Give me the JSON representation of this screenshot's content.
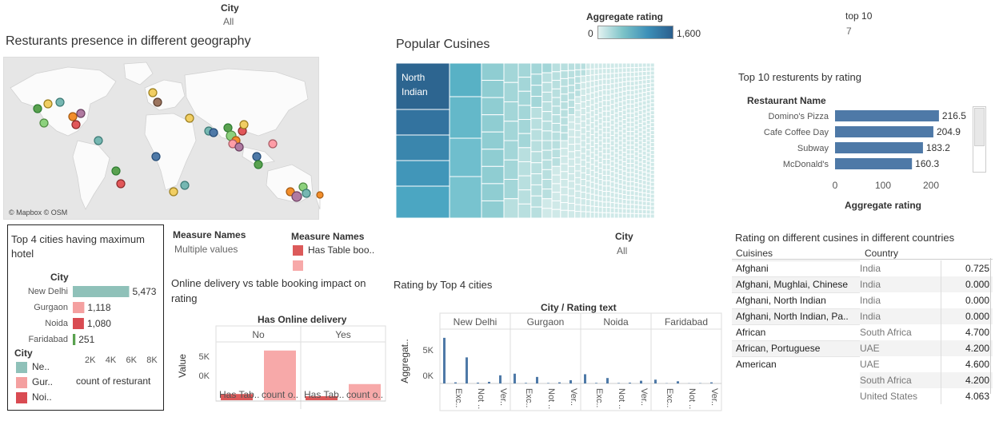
{
  "filters": {
    "city_top": {
      "label": "City",
      "value": "All"
    },
    "aggregate_rating": {
      "label": "Aggregate rating",
      "min": "0",
      "max": "1,600"
    },
    "top10": {
      "label": "top 10",
      "value": "7"
    },
    "city_mid": {
      "label": "City",
      "value": "All"
    }
  },
  "map": {
    "title": "Resturants presence in different geography",
    "credit": "© Mapbox © OSM"
  },
  "treemap": {
    "title": "Popular Cusines",
    "largest_label_line1": "North",
    "largest_label_line2": "Indian"
  },
  "top10_chart": {
    "title": "Top 10 resturents by rating",
    "column_header": "Restaurant Name",
    "xlabel": "Aggregate rating",
    "ticks": [
      "0",
      "100",
      "200"
    ]
  },
  "cities_panel": {
    "title_line1": "Top 4 cities having maximum",
    "title_line2": "hotel",
    "column_header": "City",
    "xlabel": "count of resturant",
    "ticks": [
      "2K",
      "4K",
      "6K",
      "8K"
    ],
    "legend_title": "City",
    "legend": [
      {
        "label": "Ne..",
        "color": "#8fc1b9"
      },
      {
        "label": "Gur..",
        "color": "#f4a0a0"
      },
      {
        "label": "Noi..",
        "color": "#d94b52"
      }
    ]
  },
  "measure_names": {
    "left_title": "Measure Names",
    "left_value": "Multiple values",
    "right_title": "Measure Names",
    "right_items": [
      {
        "label": "Has Table boo..",
        "color": "#dc5a5a"
      },
      {
        "label": "",
        "color": "#f7a9a9"
      }
    ]
  },
  "online_chart": {
    "title_line1": "Online delivery vs table booking impact on",
    "title_line2": "rating",
    "header": "Has Online delivery",
    "ylabel": "Value",
    "yticks": [
      "5K",
      "0K"
    ],
    "groups": [
      "No",
      "Yes"
    ],
    "xlabels": [
      "Has Tab..",
      "count o..",
      "Has Tab..",
      "count o.."
    ]
  },
  "rating_chart": {
    "title": "Rating by Top 4 cities",
    "header": "City / Rating text",
    "ylabel": "Aggregat..",
    "yticks": [
      "5K",
      "0K"
    ],
    "xlabels": [
      "Exc..",
      "Not ..",
      "Ver.."
    ]
  },
  "cuisine_table": {
    "title": "Rating on different cusines in different countries",
    "col1": "Cuisines",
    "col2": "Country",
    "rows": [
      {
        "cuisine": "Afghani",
        "country": "India",
        "value": "0.725"
      },
      {
        "cuisine": "Afghani, Mughlai, Chinese",
        "country": "India",
        "value": "0.000"
      },
      {
        "cuisine": "Afghani, North Indian",
        "country": "India",
        "value": "0.000"
      },
      {
        "cuisine": "Afghani, North Indian, Pa..",
        "country": "India",
        "value": "0.000"
      },
      {
        "cuisine": "African",
        "country": "South Africa",
        "value": "4.700"
      },
      {
        "cuisine": "African, Portuguese",
        "country": "UAE",
        "value": "4.200"
      },
      {
        "cuisine": "American",
        "country": "UAE",
        "value": "4.600"
      },
      {
        "cuisine": "",
        "country": "South Africa",
        "value": "4.200"
      },
      {
        "cuisine": "",
        "country": "United States",
        "value": "4.063"
      }
    ]
  },
  "chart_data": [
    {
      "type": "bar",
      "title": "Top 10 resturents by rating",
      "categories": [
        "Domino's Pizza",
        "Cafe Coffee Day",
        "Subway",
        "McDonald's"
      ],
      "values": [
        216.5,
        204.9,
        183.2,
        160.3
      ],
      "value_labels": [
        "216.5",
        "204.9",
        "183.2",
        "160.3"
      ],
      "xlabel": "Aggregate rating",
      "xlim": [
        0,
        250
      ],
      "color": "#4e79a7"
    },
    {
      "type": "bar",
      "title": "Top 4 cities having maximum hotel",
      "categories": [
        "New Delhi",
        "Gurgaon",
        "Noida",
        "Faridabad"
      ],
      "values": [
        5473,
        1118,
        1080,
        251
      ],
      "value_labels": [
        "5,473",
        "1,118",
        "1,080",
        "251"
      ],
      "colors": [
        "#8fc1b9",
        "#f4a0a0",
        "#d94b52",
        "#59a14f"
      ],
      "xlabel": "count of resturant",
      "xlim": [
        0,
        8000
      ]
    },
    {
      "type": "bar",
      "title": "Online delivery vs table booking impact on rating",
      "groups": [
        "No",
        "Yes"
      ],
      "series": [
        {
          "name": "Has Table boo..",
          "values": [
            1000,
            650
          ],
          "color": "#dc5a5a"
        },
        {
          "name": "",
          "values": [
            8000,
            2600
          ],
          "color": "#f7a9a9"
        }
      ],
      "ylabel": "Value",
      "ylim": [
        0,
        9000
      ]
    },
    {
      "type": "bar",
      "title": "Rating by Top 4 cities",
      "cities": [
        "New Delhi",
        "Gurgaon",
        "Noida",
        "Faridabad"
      ],
      "bars_per_city": 6,
      "values": [
        [
          8400,
          200,
          4800,
          150,
          300,
          1500
        ],
        [
          1800,
          100,
          1200,
          80,
          200,
          600
        ],
        [
          1700,
          100,
          1000,
          80,
          150,
          500
        ],
        [
          700,
          40,
          400,
          30,
          60,
          200
        ]
      ],
      "ylabel": "Aggregat..",
      "ylim": [
        0,
        10000
      ],
      "color": "#4e79a7"
    }
  ]
}
